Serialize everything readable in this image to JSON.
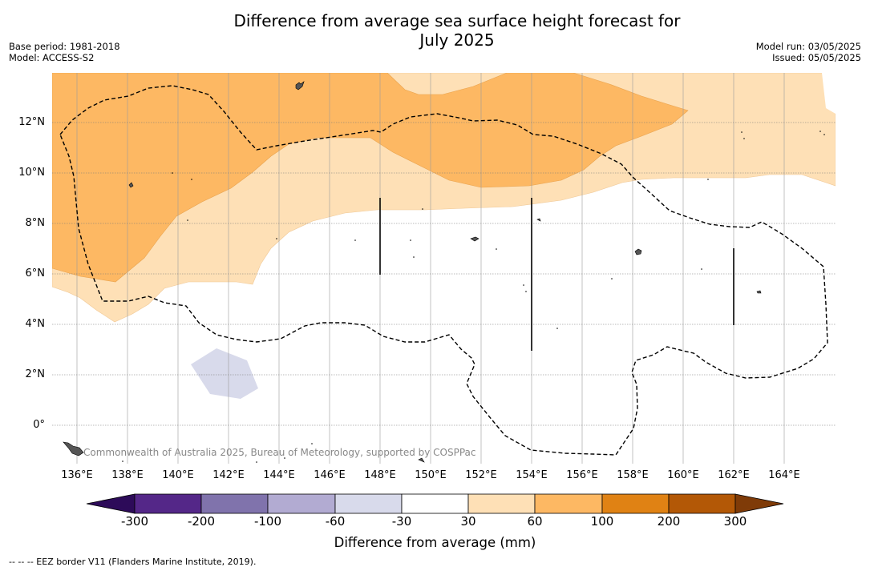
{
  "title_line1": "Difference from average sea surface height forecast for",
  "title_line2": "July 2025",
  "meta_left": [
    "Base period: 1981-2018",
    "Model: ACCESS-S2"
  ],
  "meta_right": [
    "Model run: 03/05/2025",
    "Issued: 05/05/2025"
  ],
  "credit": "Commonwealth of Australia 2025, Bureau of Meteorology, supported by COSPPac",
  "x_ticks": [
    "136°E",
    "138°E",
    "140°E",
    "142°E",
    "144°E",
    "146°E",
    "148°E",
    "150°E",
    "152°E",
    "154°E",
    "156°E",
    "158°E",
    "160°E",
    "162°E",
    "164°E"
  ],
  "y_ticks": [
    "12°N",
    "10°N",
    "8°N",
    "6°N",
    "4°N",
    "2°N",
    "0°"
  ],
  "colorbar": {
    "ticks": [
      "-300",
      "-200",
      "-100",
      "-60",
      "-30",
      "30",
      "60",
      "100",
      "200",
      "300"
    ],
    "colors": [
      "#2d0b59",
      "#542788",
      "#8073ac",
      "#b2abd2",
      "#d8daeb",
      "#ffffff",
      "#fee0b6",
      "#fdb863",
      "#e08214",
      "#b35806",
      "#7f3b08"
    ],
    "label": "Difference from average (mm)"
  },
  "legend_footer": "--  --  -- EEZ border V11 (Flanders Marine Institute, 2019)."
}
